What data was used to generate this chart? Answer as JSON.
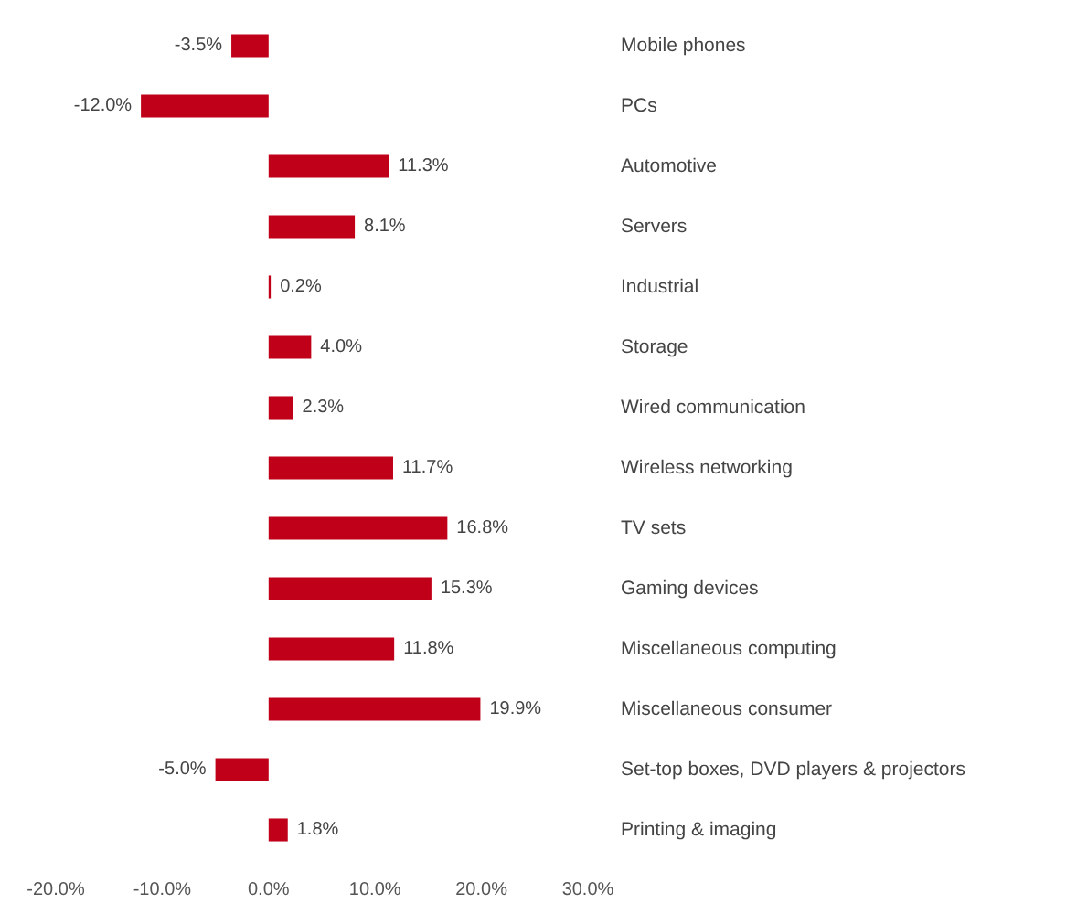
{
  "chart_data": {
    "type": "bar",
    "orientation": "horizontal",
    "categories": [
      "Mobile phones",
      "PCs",
      "Automotive",
      "Servers",
      "Industrial",
      "Storage",
      "Wired communication",
      "Wireless networking",
      "TV sets",
      "Gaming devices",
      "Miscellaneous computing",
      "Miscellaneous consumer",
      "Set-top boxes, DVD players & projectors",
      "Printing & imaging"
    ],
    "values": [
      -3.5,
      -12.0,
      11.3,
      8.1,
      0.2,
      4.0,
      2.3,
      11.7,
      16.8,
      15.3,
      11.8,
      19.9,
      -5.0,
      1.8
    ],
    "value_labels": [
      "-3.5%",
      "-12.0%",
      "11.3%",
      "8.1%",
      "0.2%",
      "4.0%",
      "2.3%",
      "11.7%",
      "16.8%",
      "15.3%",
      "11.8%",
      "19.9%",
      "-5.0%",
      "1.8%"
    ],
    "color": "#c00018",
    "xlim": [
      -20,
      30
    ],
    "xticks": [
      {
        "value": -20,
        "label": "-20.0%"
      },
      {
        "value": -10,
        "label": "-10.0%"
      },
      {
        "value": 0,
        "label": "0.0%"
      },
      {
        "value": 10,
        "label": "10.0%"
      },
      {
        "value": 20,
        "label": "20.0%"
      },
      {
        "value": 30,
        "label": "30.0%"
      }
    ],
    "grid": false
  }
}
